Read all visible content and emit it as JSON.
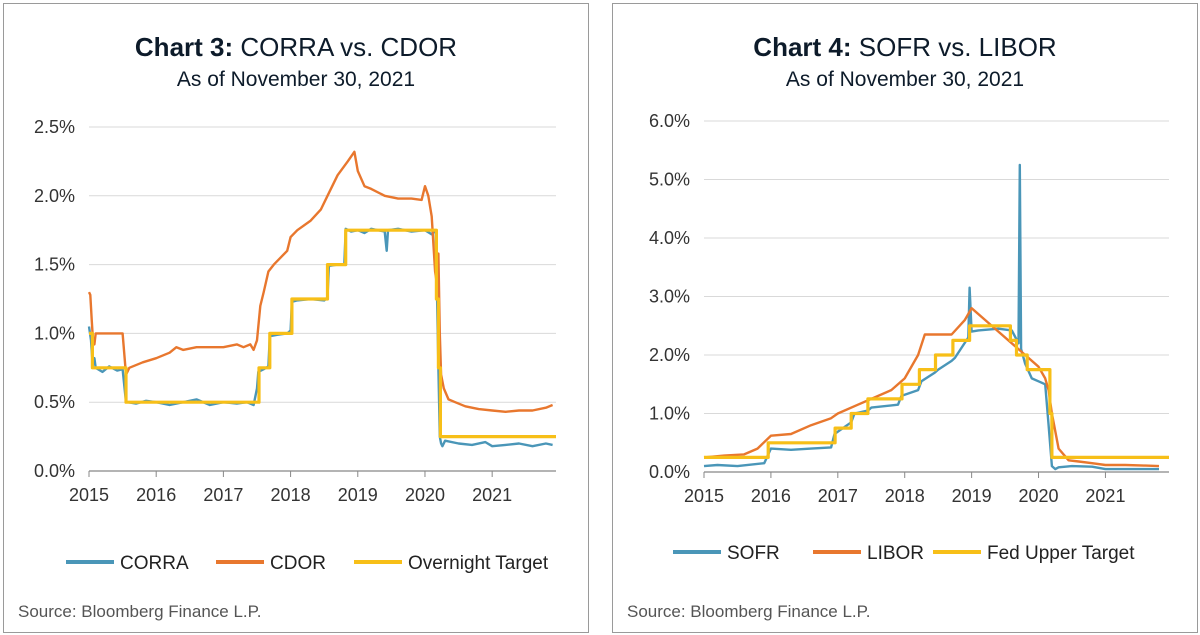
{
  "charts": [
    {
      "title_bold": "Chart 3:",
      "title_rest": "CORRA vs. CDOR",
      "subtitle": "As of November 30, 2021",
      "source": "Source: Bloomberg Finance L.P.",
      "chart_data": {
        "type": "line",
        "xlabel": "",
        "ylabel": "",
        "xlim": [
          2015,
          2021.95
        ],
        "ylim": [
          0,
          2.5
        ],
        "x_ticks": [
          2015,
          2016,
          2017,
          2018,
          2019,
          2020,
          2021
        ],
        "x_tick_labels": [
          "2015",
          "2016",
          "2017",
          "2018",
          "2019",
          "2020",
          "2021"
        ],
        "y_ticks": [
          0,
          0.5,
          1.0,
          1.5,
          2.0,
          2.5
        ],
        "y_tick_labels": [
          "0.0%",
          "0.5%",
          "1.0%",
          "1.5%",
          "2.0%",
          "2.5%"
        ],
        "grid": "horizontal",
        "legend_position": "bottom",
        "series": [
          {
            "name": "CORRA",
            "color": "#4a96b8",
            "step": false,
            "x": [
              2015.0,
              2015.03,
              2015.05,
              2015.08,
              2015.1,
              2015.2,
              2015.3,
              2015.42,
              2015.5,
              2015.55,
              2015.58,
              2015.7,
              2015.85,
              2016.0,
              2016.2,
              2016.4,
              2016.6,
              2016.8,
              2017.0,
              2017.2,
              2017.35,
              2017.45,
              2017.5,
              2017.52,
              2017.6,
              2017.67,
              2017.69,
              2017.8,
              2017.95,
              2018.0,
              2018.02,
              2018.1,
              2018.3,
              2018.5,
              2018.55,
              2018.57,
              2018.7,
              2018.8,
              2018.82,
              2018.9,
              2019.0,
              2019.1,
              2019.2,
              2019.4,
              2019.43,
              2019.45,
              2019.6,
              2019.8,
              2020.0,
              2020.1,
              2020.16,
              2020.18,
              2020.2,
              2020.22,
              2020.24,
              2020.26,
              2020.3,
              2020.5,
              2020.7,
              2020.9,
              2021.0,
              2021.2,
              2021.4,
              2021.6,
              2021.8,
              2021.9
            ],
            "y": [
              1.05,
              0.95,
              0.8,
              0.82,
              0.75,
              0.72,
              0.76,
              0.73,
              0.74,
              0.5,
              0.5,
              0.49,
              0.51,
              0.5,
              0.48,
              0.5,
              0.52,
              0.48,
              0.5,
              0.49,
              0.5,
              0.48,
              0.6,
              0.72,
              0.74,
              0.76,
              0.98,
              0.99,
              1.0,
              1.02,
              1.23,
              1.24,
              1.25,
              1.24,
              1.26,
              1.49,
              1.5,
              1.5,
              1.76,
              1.74,
              1.75,
              1.73,
              1.76,
              1.74,
              1.6,
              1.75,
              1.76,
              1.74,
              1.75,
              1.72,
              1.75,
              1.25,
              0.75,
              0.25,
              0.2,
              0.18,
              0.22,
              0.2,
              0.19,
              0.21,
              0.18,
              0.19,
              0.2,
              0.18,
              0.2,
              0.19
            ]
          },
          {
            "name": "CDOR",
            "color": "#e8772e",
            "step": false,
            "x": [
              2015.0,
              2015.02,
              2015.04,
              2015.06,
              2015.08,
              2015.1,
              2015.2,
              2015.4,
              2015.5,
              2015.55,
              2015.6,
              2015.8,
              2016.0,
              2016.2,
              2016.3,
              2016.4,
              2016.6,
              2016.8,
              2017.0,
              2017.2,
              2017.3,
              2017.4,
              2017.45,
              2017.5,
              2017.55,
              2017.6,
              2017.67,
              2017.75,
              2017.85,
              2017.95,
              2018.0,
              2018.1,
              2018.3,
              2018.45,
              2018.55,
              2018.7,
              2018.85,
              2018.95,
              2019.0,
              2019.1,
              2019.2,
              2019.4,
              2019.6,
              2019.8,
              2019.95,
              2020.0,
              2020.05,
              2020.1,
              2020.15,
              2020.18,
              2020.2,
              2020.22,
              2020.24,
              2020.28,
              2020.35,
              2020.45,
              2020.6,
              2020.8,
              2021.0,
              2021.2,
              2021.4,
              2021.6,
              2021.8,
              2021.9
            ],
            "y": [
              1.3,
              1.28,
              1.1,
              0.95,
              0.92,
              1.0,
              1.0,
              1.0,
              1.0,
              0.7,
              0.75,
              0.79,
              0.82,
              0.86,
              0.9,
              0.88,
              0.9,
              0.9,
              0.9,
              0.92,
              0.9,
              0.92,
              0.88,
              0.95,
              1.2,
              1.3,
              1.45,
              1.5,
              1.55,
              1.6,
              1.7,
              1.75,
              1.82,
              1.9,
              2.0,
              2.15,
              2.25,
              2.32,
              2.18,
              2.07,
              2.05,
              2.0,
              1.98,
              1.98,
              1.97,
              2.07,
              2.0,
              1.85,
              1.45,
              1.35,
              1.58,
              1.0,
              0.7,
              0.6,
              0.52,
              0.5,
              0.47,
              0.45,
              0.44,
              0.43,
              0.44,
              0.44,
              0.46,
              0.48
            ]
          },
          {
            "name": "Overnight Target",
            "color": "#f7bf18",
            "step": true,
            "x": [
              2015.0,
              2015.05,
              2015.55,
              2017.53,
              2017.69,
              2018.02,
              2018.55,
              2018.82,
              2020.17,
              2020.2,
              2020.23,
              2021.95
            ],
            "y": [
              1.0,
              0.75,
              0.5,
              0.75,
              1.0,
              1.25,
              1.5,
              1.75,
              1.25,
              0.75,
              0.25,
              0.25
            ]
          }
        ]
      }
    },
    {
      "title_bold": "Chart 4:",
      "title_rest": "SOFR vs. LIBOR",
      "subtitle": "As of November 30, 2021",
      "source": "Source: Bloomberg Finance L.P.",
      "chart_data": {
        "type": "line",
        "xlabel": "",
        "ylabel": "",
        "xlim": [
          2015,
          2021.95
        ],
        "ylim": [
          0,
          6
        ],
        "x_ticks": [
          2015,
          2016,
          2017,
          2018,
          2019,
          2020,
          2021
        ],
        "x_tick_labels": [
          "2015",
          "2016",
          "2017",
          "2018",
          "2019",
          "2020",
          "2021"
        ],
        "y_ticks": [
          0,
          1,
          2,
          3,
          4,
          5,
          6
        ],
        "y_tick_labels": [
          "0.0%",
          "1.0%",
          "2.0%",
          "3.0%",
          "4.0%",
          "5.0%",
          "6.0%"
        ],
        "grid": "horizontal",
        "legend_position": "bottom",
        "series": [
          {
            "name": "SOFR",
            "color": "#4a96b8",
            "step": false,
            "x": [
              2015.0,
              2015.2,
              2015.5,
              2015.9,
              2016.0,
              2016.3,
              2016.6,
              2016.9,
              2016.95,
              2017.2,
              2017.25,
              2017.45,
              2017.5,
              2017.9,
              2017.95,
              2018.2,
              2018.25,
              2018.45,
              2018.5,
              2018.7,
              2018.75,
              2018.95,
              2018.97,
              2019.0,
              2019.1,
              2019.4,
              2019.6,
              2019.7,
              2019.72,
              2019.74,
              2019.8,
              2019.9,
              2020.0,
              2020.1,
              2020.15,
              2020.2,
              2020.25,
              2020.3,
              2020.5,
              2020.8,
              2021.0,
              2021.3,
              2021.6,
              2021.8
            ],
            "y": [
              0.1,
              0.12,
              0.1,
              0.15,
              0.4,
              0.38,
              0.4,
              0.42,
              0.65,
              0.85,
              1.0,
              1.05,
              1.1,
              1.15,
              1.3,
              1.4,
              1.55,
              1.7,
              1.75,
              1.9,
              1.95,
              2.3,
              3.15,
              2.4,
              2.42,
              2.45,
              2.42,
              2.2,
              5.25,
              2.1,
              1.85,
              1.6,
              1.55,
              1.5,
              0.8,
              0.1,
              0.05,
              0.08,
              0.1,
              0.09,
              0.05,
              0.05,
              0.05,
              0.05
            ]
          },
          {
            "name": "LIBOR",
            "color": "#e8772e",
            "step": false,
            "x": [
              2015.0,
              2015.3,
              2015.6,
              2015.8,
              2016.0,
              2016.3,
              2016.6,
              2016.9,
              2017.0,
              2017.3,
              2017.5,
              2017.8,
              2018.0,
              2018.2,
              2018.3,
              2018.5,
              2018.7,
              2018.9,
              2019.0,
              2019.2,
              2019.4,
              2019.6,
              2019.8,
              2020.0,
              2020.1,
              2020.15,
              2020.2,
              2020.3,
              2020.45,
              2020.6,
              2020.8,
              2021.0,
              2021.3,
              2021.6,
              2021.8
            ],
            "y": [
              0.25,
              0.28,
              0.3,
              0.4,
              0.62,
              0.65,
              0.8,
              0.92,
              1.0,
              1.15,
              1.25,
              1.4,
              1.6,
              2.0,
              2.35,
              2.35,
              2.35,
              2.6,
              2.8,
              2.6,
              2.4,
              2.2,
              2.0,
              1.8,
              1.6,
              1.4,
              1.0,
              0.4,
              0.2,
              0.18,
              0.15,
              0.12,
              0.12,
              0.11,
              0.1
            ]
          },
          {
            "name": "Fed Upper Target",
            "color": "#f7bf18",
            "step": true,
            "x": [
              2015.0,
              2015.96,
              2016.96,
              2017.2,
              2017.45,
              2017.96,
              2018.22,
              2018.46,
              2018.72,
              2018.97,
              2019.58,
              2019.67,
              2019.83,
              2020.17,
              2020.2,
              2021.95
            ],
            "y": [
              0.25,
              0.5,
              0.75,
              1.0,
              1.25,
              1.5,
              1.75,
              2.0,
              2.25,
              2.5,
              2.25,
              2.0,
              1.75,
              1.0,
              0.25,
              0.25
            ]
          }
        ]
      }
    }
  ]
}
